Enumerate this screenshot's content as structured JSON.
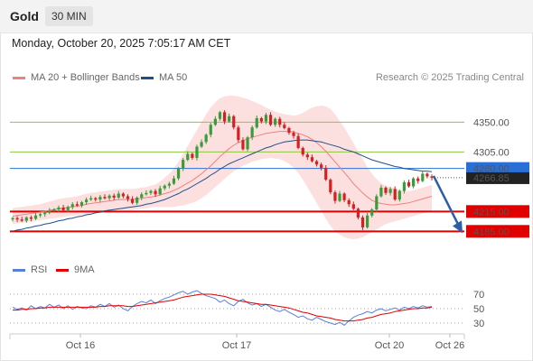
{
  "header": {
    "title": "Gold",
    "timeframe": "30 MIN"
  },
  "datetime": "Monday, October 20, 2025 7:05:17 AM CET",
  "legend": {
    "items": [
      {
        "label": "MA 20 + Bollinger Bands",
        "color": "#f08080"
      },
      {
        "label": "MA 50",
        "color": "#1f4e8c"
      }
    ],
    "copyright": "Research © 2025 Trading Central"
  },
  "rsi_legend": {
    "items": [
      {
        "label": "RSI",
        "color": "#5b7fd6"
      },
      {
        "label": "9MA",
        "color": "#e00000"
      }
    ]
  },
  "chart_data": {
    "type": "candlestick",
    "instrument": "Gold",
    "timeframe": "30 MIN",
    "ylim": [
      4150,
      4405
    ],
    "x_ticks": [
      "Oct 16",
      "Oct 17",
      "Oct 20",
      "Oct 26"
    ],
    "current_price": "4266.85",
    "levels": [
      {
        "value": 4350.0,
        "label": "4350.00",
        "style": "thin-green",
        "color": "#8ec63f",
        "label_color": "#4a8a1c"
      },
      {
        "value": 4305.0,
        "label": "4305.00",
        "style": "thin-green",
        "color": "#8ec63f",
        "label_color": "#4a8a1c"
      },
      {
        "value": 4280.0,
        "label": "4280.00",
        "style": "pivot-blue",
        "color": "#2a6fd6",
        "label_color": "#ffffff"
      },
      {
        "value": 4215.0,
        "label": "4215.00",
        "style": "support-red",
        "color": "#e00000",
        "label_color": "#ffffff"
      },
      {
        "value": 4185.0,
        "label": "4185.00",
        "style": "support-red",
        "color": "#e00000",
        "label_color": "#ffffff"
      }
    ],
    "close": [
      4205,
      4203,
      4201,
      4206,
      4204,
      4209,
      4211,
      4213,
      4216,
      4218,
      4221,
      4217,
      4222,
      4226,
      4224,
      4229,
      4233,
      4235,
      4233,
      4237,
      4235,
      4239,
      4236,
      4242,
      4238,
      4234,
      4228,
      4236,
      4241,
      4243,
      4246,
      4241,
      4250,
      4254,
      4257,
      4265,
      4280,
      4293,
      4302,
      4296,
      4313,
      4320,
      4331,
      4346,
      4355,
      4365,
      4351,
      4359,
      4342,
      4323,
      4309,
      4327,
      4342,
      4356,
      4351,
      4361,
      4346,
      4355,
      4346,
      4341,
      4334,
      4329,
      4311,
      4301,
      4297,
      4291,
      4286,
      4281,
      4263,
      4244,
      4231,
      4242,
      4232,
      4226,
      4219,
      4206,
      4191,
      4209,
      4218,
      4238,
      4251,
      4243,
      4249,
      4233,
      4246,
      4259,
      4253,
      4265,
      4261,
      4272,
      4268,
      4266
    ],
    "ma20": [
      4208,
      4209,
      4210,
      4211,
      4212,
      4213,
      4214,
      4215,
      4217,
      4218,
      4219,
      4220,
      4221,
      4222,
      4223,
      4224,
      4226,
      4227,
      4228,
      4229,
      4230,
      4231,
      4232,
      4233,
      4233,
      4233,
      4233,
      4234,
      4235,
      4236,
      4237,
      4238,
      4240,
      4242,
      4244,
      4247,
      4250,
      4254,
      4258,
      4262,
      4267,
      4272,
      4278,
      4284,
      4291,
      4298,
      4304,
      4310,
      4315,
      4319,
      4322,
      4325,
      4327,
      4329,
      4331,
      4333,
      4334,
      4335,
      4336,
      4336,
      4336,
      4335,
      4333,
      4331,
      4328,
      4324,
      4319,
      4313,
      4306,
      4298,
      4290,
      4282,
      4274,
      4266,
      4257,
      4250,
      4243,
      4237,
      4232,
      4229,
      4227,
      4226,
      4225,
      4225,
      4226,
      4227,
      4228,
      4230,
      4232,
      4234,
      4236,
      4238
    ],
    "ma50": [
      4185,
      4187,
      4188,
      4190,
      4191,
      4193,
      4194,
      4196,
      4197,
      4199,
      4201,
      4202,
      4204,
      4205,
      4207,
      4208,
      4210,
      4211,
      4213,
      4214,
      4216,
      4217,
      4218,
      4219,
      4220,
      4221,
      4222,
      4223,
      4224,
      4226,
      4227,
      4229,
      4231,
      4233,
      4236,
      4239,
      4242,
      4246,
      4249,
      4253,
      4257,
      4261,
      4265,
      4270,
      4274,
      4279,
      4283,
      4287,
      4290,
      4293,
      4296,
      4299,
      4302,
      4305,
      4308,
      4311,
      4313,
      4316,
      4318,
      4320,
      4321,
      4322,
      4323,
      4323,
      4323,
      4322,
      4321,
      4320,
      4318,
      4316,
      4314,
      4312,
      4309,
      4307,
      4305,
      4302,
      4299,
      4296,
      4293,
      4291,
      4289,
      4287,
      4285,
      4283,
      4282,
      4280,
      4279,
      4278,
      4277,
      4276,
      4276,
      4275
    ],
    "bb_upper": [
      4220,
      4221,
      4222,
      4223,
      4224,
      4225,
      4226,
      4228,
      4230,
      4232,
      4234,
      4235,
      4236,
      4237,
      4238,
      4240,
      4242,
      4243,
      4244,
      4245,
      4246,
      4247,
      4248,
      4249,
      4249,
      4249,
      4249,
      4250,
      4251,
      4252,
      4254,
      4256,
      4260,
      4266,
      4272,
      4280,
      4290,
      4302,
      4314,
      4326,
      4338,
      4350,
      4362,
      4372,
      4380,
      4386,
      4389,
      4390,
      4390,
      4389,
      4387,
      4385,
      4382,
      4379,
      4376,
      4372,
      4369,
      4366,
      4364,
      4362,
      4361,
      4360,
      4361,
      4364,
      4368,
      4372,
      4374,
      4375,
      4374,
      4370,
      4362,
      4352,
      4342,
      4330,
      4318,
      4306,
      4294,
      4282,
      4272,
      4264,
      4258,
      4254,
      4252,
      4250,
      4248,
      4246,
      4246,
      4247,
      4249,
      4251,
      4253,
      4255
    ],
    "bb_lower": [
      4196,
      4197,
      4198,
      4199,
      4200,
      4201,
      4202,
      4203,
      4204,
      4205,
      4206,
      4207,
      4208,
      4208,
      4209,
      4210,
      4211,
      4212,
      4213,
      4214,
      4214,
      4215,
      4216,
      4217,
      4217,
      4217,
      4217,
      4218,
      4219,
      4220,
      4221,
      4222,
      4222,
      4222,
      4222,
      4222,
      4223,
      4224,
      4226,
      4228,
      4231,
      4235,
      4240,
      4246,
      4252,
      4258,
      4264,
      4270,
      4276,
      4280,
      4284,
      4287,
      4290,
      4292,
      4294,
      4295,
      4296,
      4295,
      4294,
      4291,
      4287,
      4281,
      4273,
      4263,
      4252,
      4240,
      4228,
      4216,
      4204,
      4193,
      4185,
      4180,
      4176,
      4174,
      4173,
      4174,
      4176,
      4180,
      4184,
      4188,
      4192,
      4196,
      4198,
      4200,
      4202,
      4204,
      4206,
      4208,
      4210,
      4212,
      4214,
      4216
    ],
    "rsi": {
      "ylim": [
        20,
        80
      ],
      "levels": [
        70,
        50,
        30
      ],
      "rsi": [
        52,
        49,
        51,
        48,
        54,
        50,
        53,
        51,
        56,
        52,
        55,
        50,
        54,
        49,
        53,
        51,
        50,
        54,
        52,
        56,
        53,
        57,
        52,
        55,
        50,
        47,
        53,
        57,
        60,
        58,
        62,
        57,
        61,
        64,
        66,
        69,
        72,
        74,
        70,
        73,
        75,
        71,
        68,
        66,
        64,
        59,
        62,
        57,
        54,
        60,
        63,
        58,
        55,
        57,
        53,
        56,
        52,
        48,
        46,
        49,
        45,
        42,
        38,
        40,
        36,
        34,
        38,
        35,
        32,
        30,
        28,
        31,
        27,
        33,
        38,
        41,
        43,
        46,
        44,
        48,
        50,
        47,
        49,
        51,
        48,
        52,
        50,
        53,
        51,
        54,
        52,
        53
      ],
      "ma9": [
        48,
        48,
        49,
        49,
        50,
        50,
        51,
        51,
        52,
        52,
        52,
        52,
        52,
        52,
        52,
        52,
        52,
        52,
        52,
        53,
        53,
        54,
        54,
        54,
        54,
        53,
        53,
        54,
        55,
        56,
        57,
        58,
        59,
        60,
        61,
        62,
        64,
        66,
        67,
        68,
        69,
        70,
        70,
        70,
        69,
        68,
        67,
        65,
        63,
        61,
        60,
        59,
        58,
        57,
        56,
        56,
        55,
        54,
        53,
        52,
        51,
        49,
        47,
        45,
        44,
        42,
        40,
        39,
        38,
        37,
        35,
        34,
        33,
        33,
        33,
        34,
        35,
        37,
        38,
        40,
        42,
        43,
        44,
        46,
        47,
        48,
        49,
        50,
        50,
        51,
        51,
        52
      ]
    }
  }
}
